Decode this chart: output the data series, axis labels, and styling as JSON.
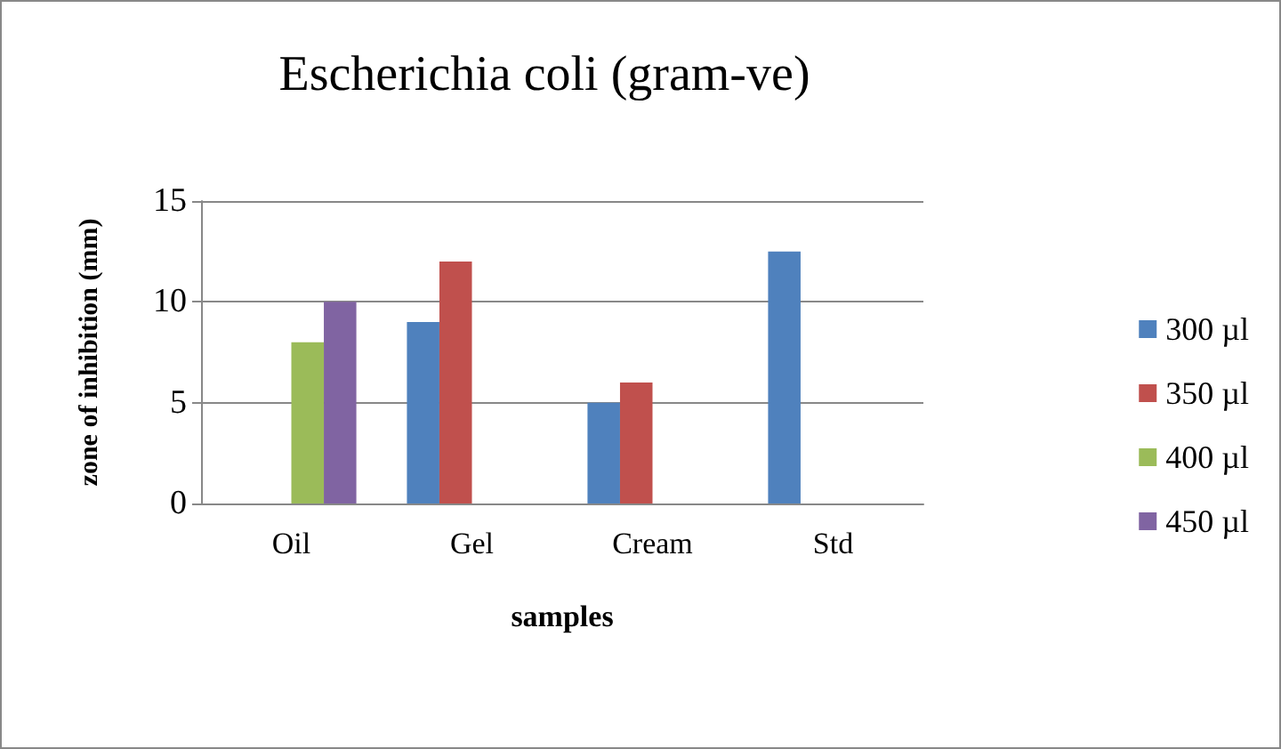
{
  "chart_data": {
    "type": "bar",
    "title": "Escherichia coli (gram-ve)",
    "xlabel": "samples",
    "ylabel": "zone of inhibition (mm)",
    "categories": [
      "Oil",
      "Gel",
      "Cream",
      "Std"
    ],
    "series": [
      {
        "name": "300 µl",
        "color": "#4f81bd",
        "values": [
          null,
          9,
          5,
          12.5
        ]
      },
      {
        "name": "350 µl",
        "color": "#c0504d",
        "values": [
          null,
          12,
          6,
          null
        ]
      },
      {
        "name": "400 µl",
        "color": "#9bbb59",
        "values": [
          8,
          null,
          null,
          null
        ]
      },
      {
        "name": "450 µl",
        "color": "#8064a2",
        "values": [
          10,
          null,
          null,
          null
        ]
      }
    ],
    "ylim": [
      0,
      15
    ],
    "yticks": [
      0,
      5,
      10,
      15
    ],
    "grid": "y",
    "legend": "right"
  }
}
